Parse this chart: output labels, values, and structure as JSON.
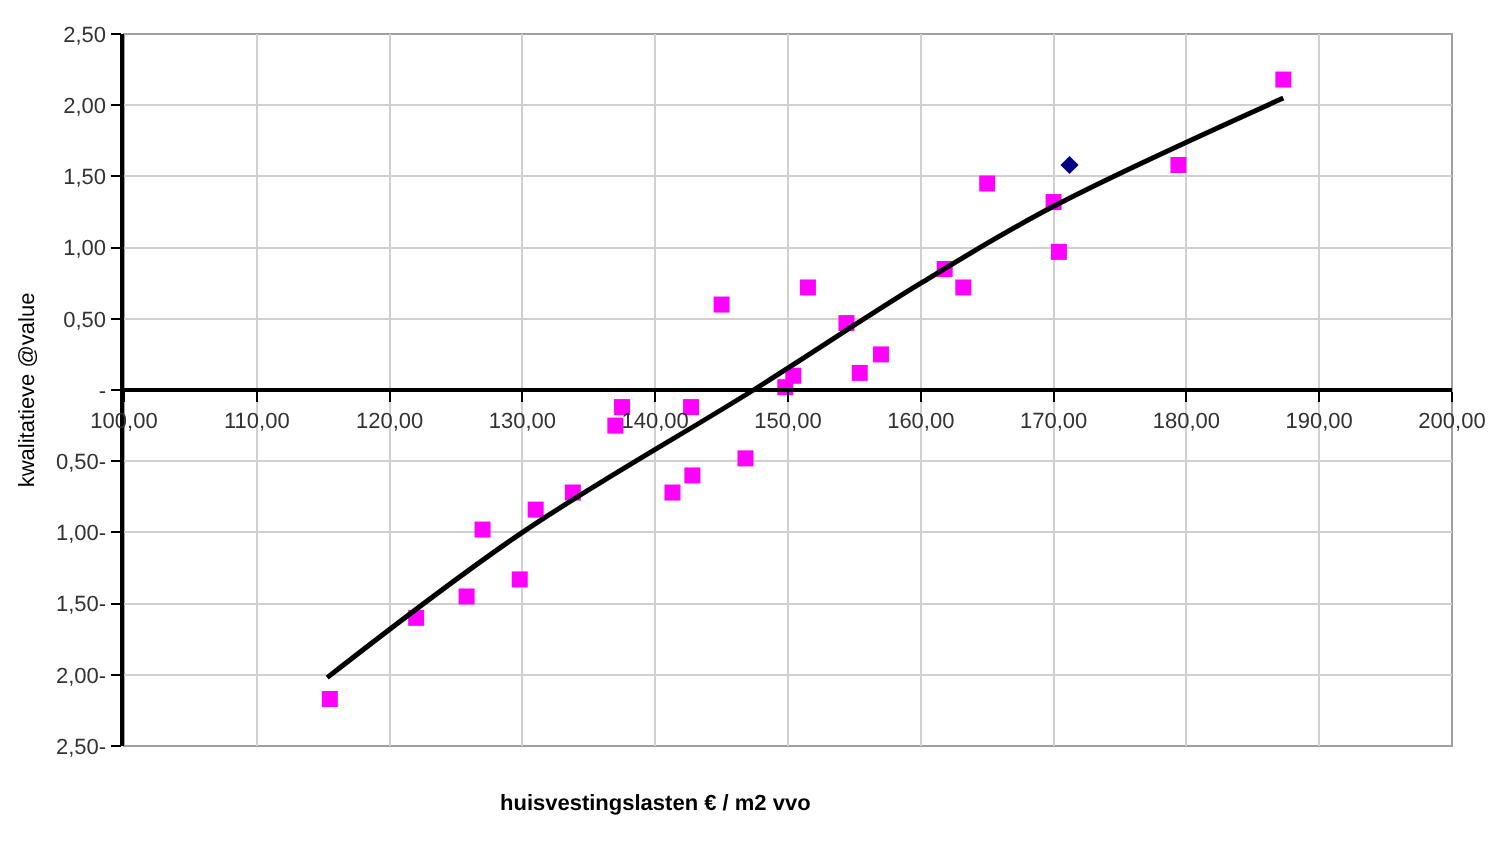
{
  "chart_data": {
    "type": "scatter",
    "xlabel": "huisvestingslasten € / m2 vvo",
    "ylabel": "kwalitatieve @value",
    "xlim": [
      100,
      200
    ],
    "ylim": [
      -2.5,
      2.5
    ],
    "xticks": [
      {
        "value": 100,
        "label": "100,00"
      },
      {
        "value": 110,
        "label": "110,00"
      },
      {
        "value": 120,
        "label": "120,00"
      },
      {
        "value": 130,
        "label": "130,00"
      },
      {
        "value": 140,
        "label": "140,00"
      },
      {
        "value": 150,
        "label": "150,00"
      },
      {
        "value": 160,
        "label": "160,00"
      },
      {
        "value": 170,
        "label": "170,00"
      },
      {
        "value": 180,
        "label": "180,00"
      },
      {
        "value": 190,
        "label": "190,00"
      },
      {
        "value": 200,
        "label": "200,00"
      }
    ],
    "yticks": [
      {
        "value": -2.5,
        "label": "2,50-"
      },
      {
        "value": -2,
        "label": "2,00-"
      },
      {
        "value": -1.5,
        "label": "1,50-"
      },
      {
        "value": -1,
        "label": "1,00-"
      },
      {
        "value": -0.5,
        "label": "0,50-"
      },
      {
        "value": 0,
        "label": "-"
      },
      {
        "value": 0.5,
        "label": "0,50"
      },
      {
        "value": 1,
        "label": "1,00"
      },
      {
        "value": 1.5,
        "label": "1,50"
      },
      {
        "value": 2,
        "label": "2,00"
      },
      {
        "value": 2.5,
        "label": "2,50"
      }
    ],
    "grid": true,
    "marker": "square",
    "series": [
      {
        "color": "#ff00ff",
        "x": [
          115.5,
          122,
          125.8,
          127,
          129.8,
          131,
          133.8,
          137,
          137.5,
          141.3,
          142.7,
          142.8,
          145,
          146.8,
          149.8,
          150.4,
          151.5,
          154.4,
          155.4,
          157,
          161.8,
          163.2,
          165,
          170,
          170.4,
          179.4,
          187.3
        ],
        "values": [
          -2.17,
          -1.6,
          -1.45,
          -0.98,
          -1.33,
          -0.84,
          -0.72,
          -0.25,
          -0.12,
          -0.72,
          -0.12,
          -0.6,
          0.6,
          -0.48,
          0.02,
          0.1,
          0.72,
          0.47,
          0.12,
          0.25,
          0.85,
          0.72,
          1.45,
          1.32,
          0.97,
          1.58,
          2.18
        ]
      },
      {
        "color": "#000080",
        "marker": "diamond",
        "x": [
          171.2
        ],
        "values": [
          1.58
        ]
      },
      {
        "type": "line",
        "color": "#000000",
        "marker": "none",
        "x": [
          115.3,
          130,
          147.4,
          160,
          170,
          187.3
        ],
        "values": [
          -2.02,
          -1.0,
          0.0,
          0.75,
          1.29,
          2.05
        ]
      }
    ]
  }
}
